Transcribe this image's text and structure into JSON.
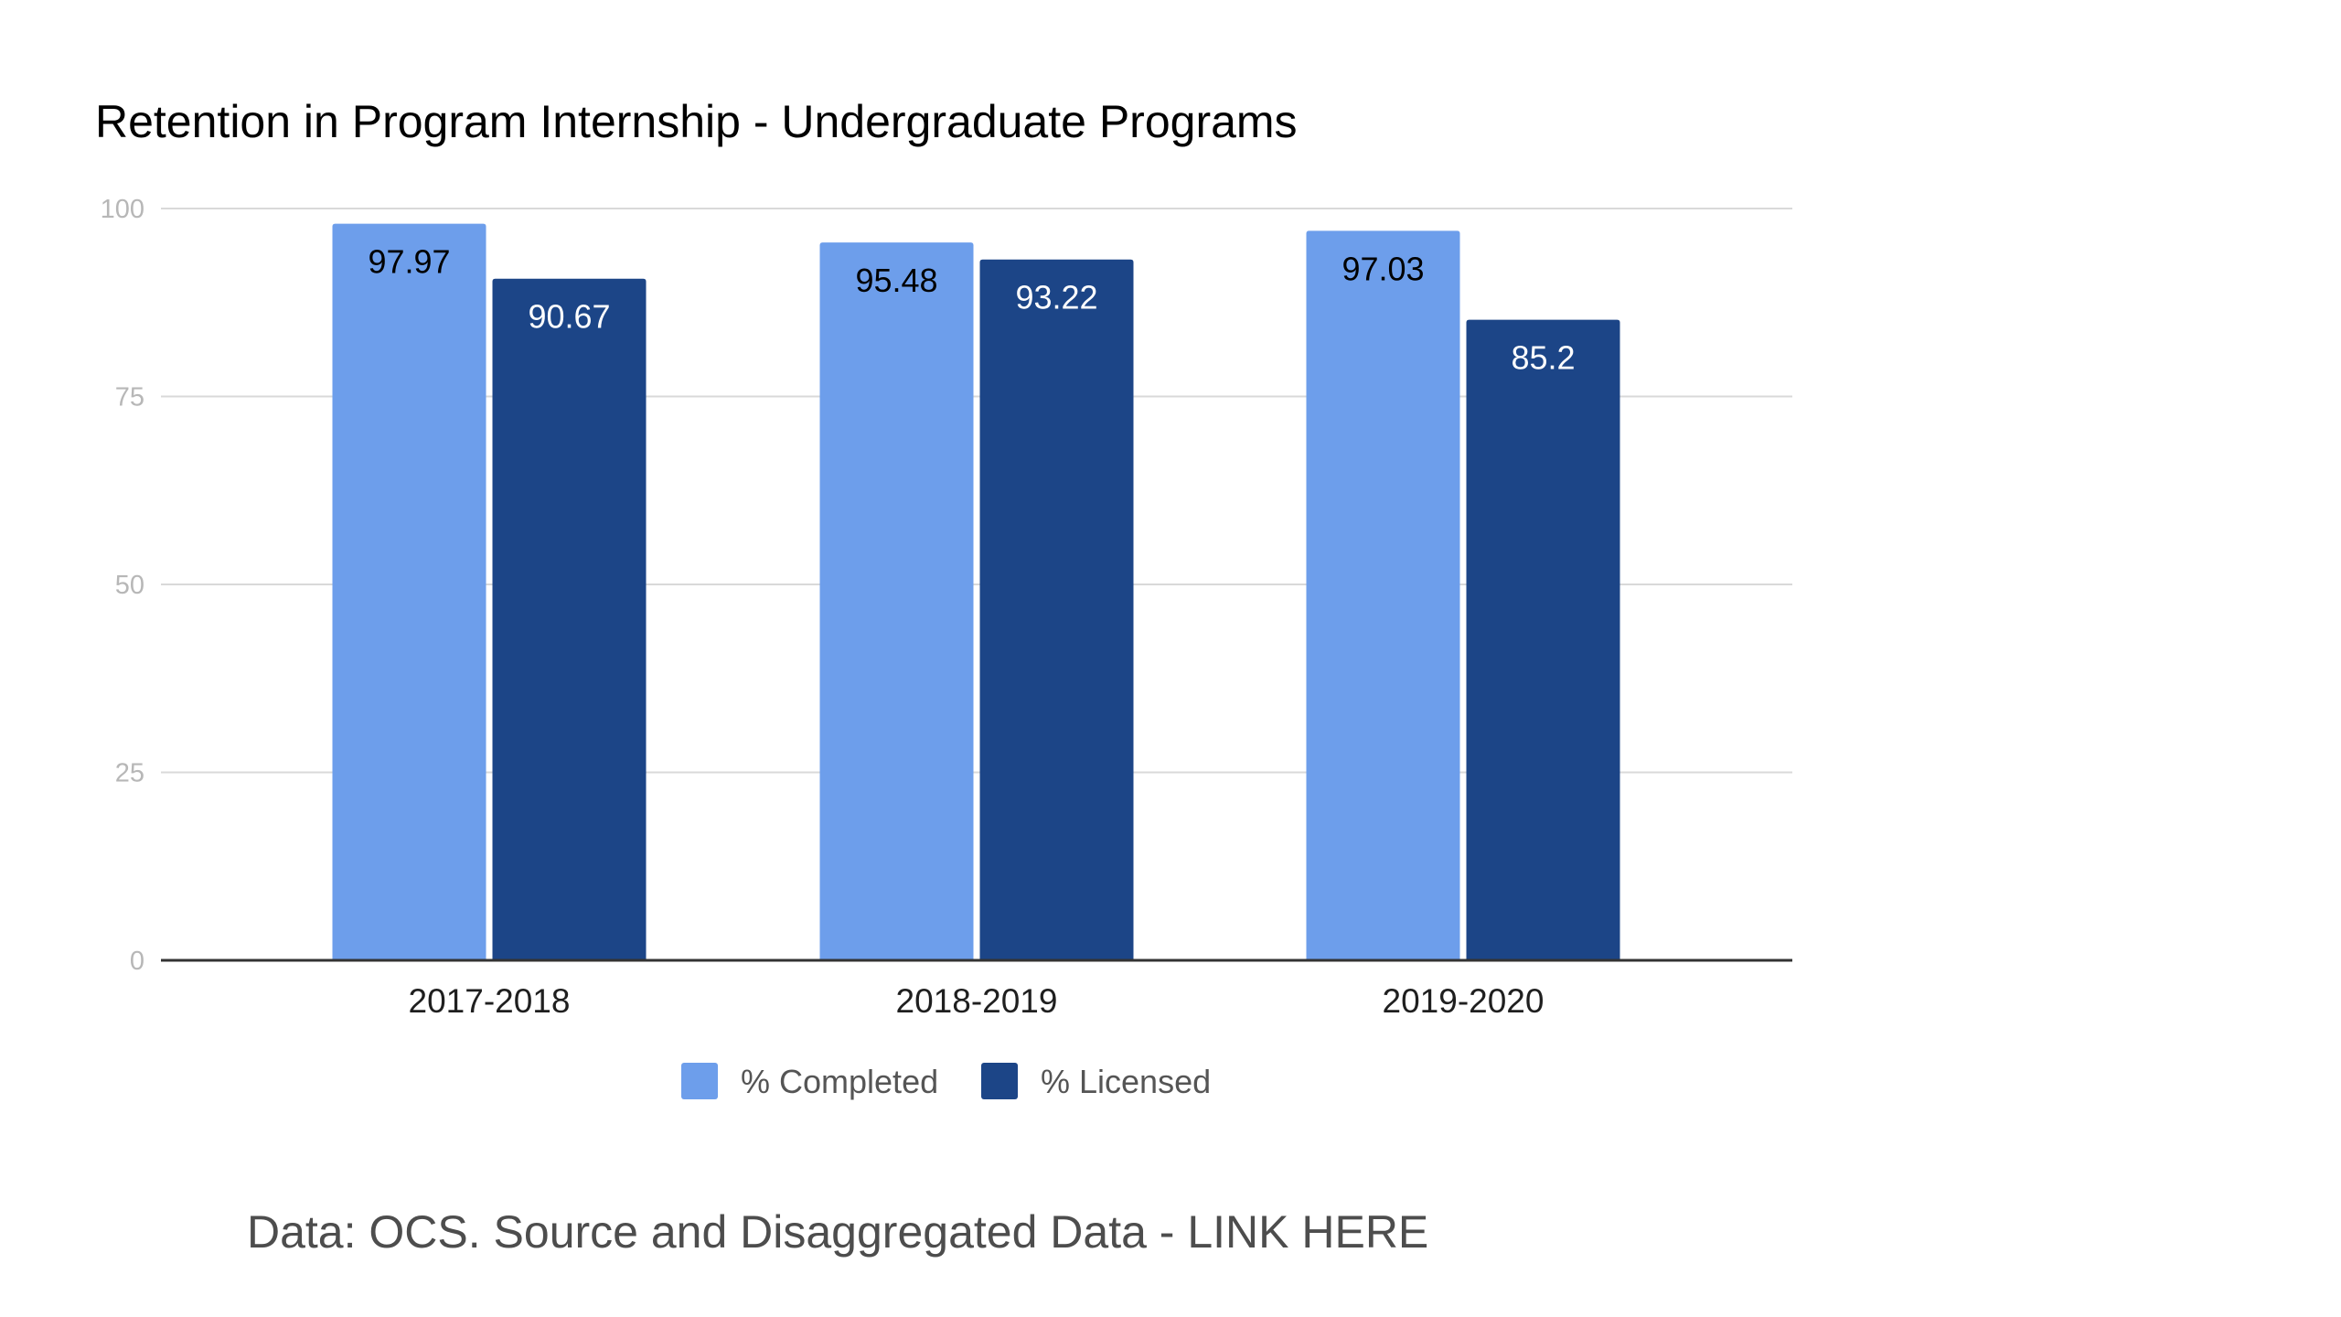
{
  "chart_data": {
    "type": "bar",
    "title": "Retention in Program Internship - Undergraduate Programs",
    "categories": [
      "2017-2018",
      "2018-2019",
      "2019-2020"
    ],
    "series": [
      {
        "name": "% Completed",
        "values": [
          97.97,
          95.48,
          97.03
        ],
        "color": "#6d9eeb"
      },
      {
        "name": "% Licensed",
        "values": [
          90.67,
          93.22,
          85.2
        ],
        "color": "#1c4587"
      }
    ],
    "data_labels": [
      [
        "97.97",
        "95.48",
        "97.03"
      ],
      [
        "90.67",
        "93.22",
        "85.2"
      ]
    ],
    "data_label_colors": [
      "#000000",
      "#ffffff"
    ],
    "ylim": [
      0,
      100
    ],
    "yticks": [
      0,
      25,
      50,
      75,
      100
    ],
    "grid": true,
    "legend_position": "bottom",
    "xlabel": "",
    "ylabel": ""
  },
  "footer": {
    "text": "Data: OCS. Source and Disaggregated Data - LINK HERE"
  }
}
